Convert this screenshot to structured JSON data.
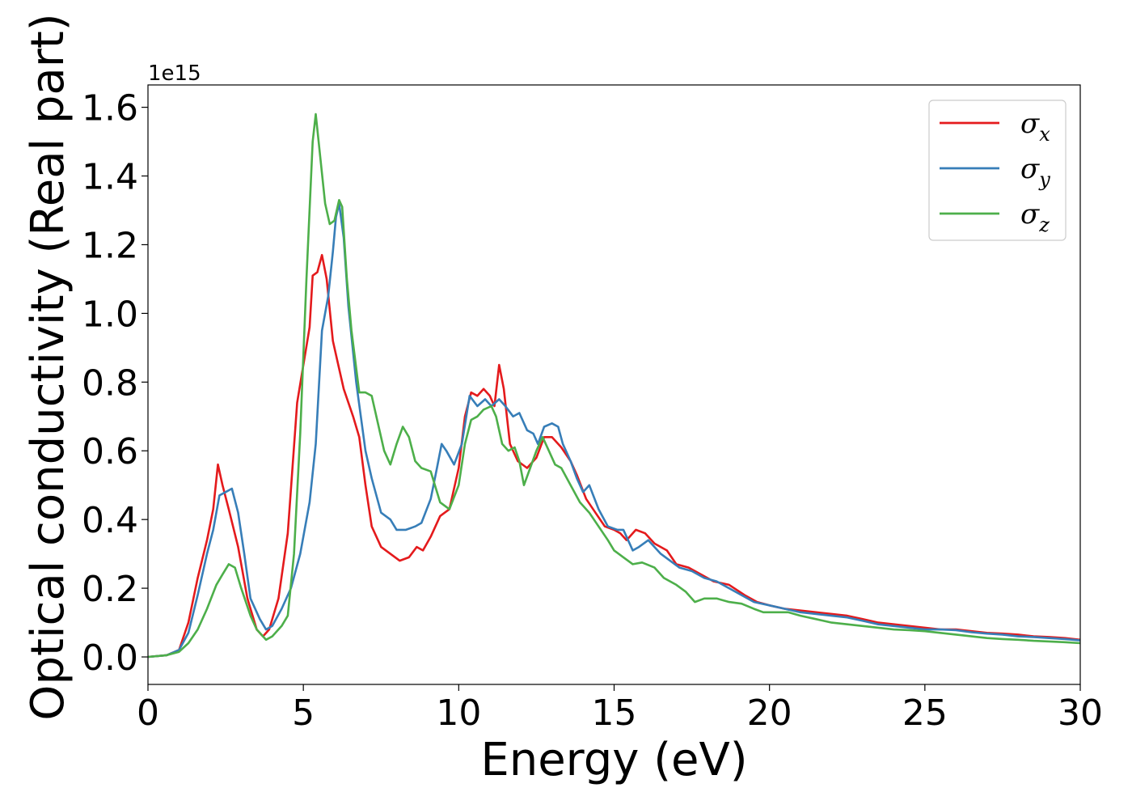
{
  "chart_data": {
    "type": "line",
    "xlabel": "Energy (eV)",
    "ylabel": "Optical conductivity (Real part)",
    "y_offset_text": "1e15",
    "xlim": [
      0,
      30
    ],
    "ylim": [
      -0.08,
      1.665
    ],
    "xticks": [
      0,
      5,
      10,
      15,
      20,
      25,
      30
    ],
    "yticks": [
      0.0,
      0.2,
      0.4,
      0.6,
      0.8,
      1.0,
      1.2,
      1.4,
      1.6
    ],
    "ytick_labels": [
      "0.0",
      "0.2",
      "0.4",
      "0.6",
      "0.8",
      "1.0",
      "1.2",
      "1.4",
      "1.6"
    ],
    "legend_position": "upper-right",
    "grid": false,
    "series": [
      {
        "name": "σx",
        "symbol": "σ",
        "subscript": "x",
        "color": "#e41a1c",
        "points": [
          [
            0,
            0
          ],
          [
            0.6,
            0.005
          ],
          [
            1.0,
            0.02
          ],
          [
            1.3,
            0.1
          ],
          [
            1.6,
            0.23
          ],
          [
            1.9,
            0.34
          ],
          [
            2.1,
            0.43
          ],
          [
            2.25,
            0.56
          ],
          [
            2.4,
            0.5
          ],
          [
            2.6,
            0.43
          ],
          [
            2.9,
            0.32
          ],
          [
            3.2,
            0.17
          ],
          [
            3.5,
            0.08
          ],
          [
            3.7,
            0.06
          ],
          [
            3.9,
            0.08
          ],
          [
            4.2,
            0.17
          ],
          [
            4.5,
            0.36
          ],
          [
            4.8,
            0.74
          ],
          [
            5.0,
            0.85
          ],
          [
            5.2,
            0.96
          ],
          [
            5.3,
            1.11
          ],
          [
            5.45,
            1.12
          ],
          [
            5.6,
            1.17
          ],
          [
            5.75,
            1.1
          ],
          [
            5.95,
            0.92
          ],
          [
            6.1,
            0.86
          ],
          [
            6.3,
            0.78
          ],
          [
            6.6,
            0.7
          ],
          [
            6.8,
            0.64
          ],
          [
            7.0,
            0.5
          ],
          [
            7.2,
            0.38
          ],
          [
            7.5,
            0.32
          ],
          [
            7.8,
            0.3
          ],
          [
            8.1,
            0.28
          ],
          [
            8.4,
            0.29
          ],
          [
            8.65,
            0.32
          ],
          [
            8.85,
            0.31
          ],
          [
            9.1,
            0.35
          ],
          [
            9.4,
            0.41
          ],
          [
            9.7,
            0.43
          ],
          [
            10.0,
            0.55
          ],
          [
            10.2,
            0.7
          ],
          [
            10.4,
            0.77
          ],
          [
            10.6,
            0.76
          ],
          [
            10.8,
            0.78
          ],
          [
            11.0,
            0.76
          ],
          [
            11.15,
            0.73
          ],
          [
            11.3,
            0.85
          ],
          [
            11.45,
            0.78
          ],
          [
            11.65,
            0.62
          ],
          [
            11.9,
            0.57
          ],
          [
            12.2,
            0.55
          ],
          [
            12.5,
            0.58
          ],
          [
            12.75,
            0.64
          ],
          [
            13.0,
            0.64
          ],
          [
            13.3,
            0.61
          ],
          [
            13.6,
            0.57
          ],
          [
            13.8,
            0.53
          ],
          [
            14.1,
            0.46
          ],
          [
            14.4,
            0.42
          ],
          [
            14.7,
            0.38
          ],
          [
            15.0,
            0.37
          ],
          [
            15.2,
            0.36
          ],
          [
            15.4,
            0.34
          ],
          [
            15.7,
            0.37
          ],
          [
            16.0,
            0.36
          ],
          [
            16.3,
            0.33
          ],
          [
            16.7,
            0.31
          ],
          [
            17.0,
            0.27
          ],
          [
            17.4,
            0.26
          ],
          [
            17.8,
            0.24
          ],
          [
            18.2,
            0.22
          ],
          [
            18.7,
            0.21
          ],
          [
            19.2,
            0.18
          ],
          [
            19.6,
            0.16
          ],
          [
            20.0,
            0.15
          ],
          [
            20.5,
            0.14
          ],
          [
            21.0,
            0.135
          ],
          [
            21.5,
            0.13
          ],
          [
            22.0,
            0.125
          ],
          [
            22.5,
            0.12
          ],
          [
            23.0,
            0.11
          ],
          [
            23.5,
            0.1
          ],
          [
            24.0,
            0.095
          ],
          [
            24.5,
            0.09
          ],
          [
            25.0,
            0.085
          ],
          [
            25.5,
            0.08
          ],
          [
            26.0,
            0.08
          ],
          [
            26.5,
            0.075
          ],
          [
            27.0,
            0.07
          ],
          [
            27.5,
            0.068
          ],
          [
            28.0,
            0.065
          ],
          [
            28.5,
            0.06
          ],
          [
            29.0,
            0.058
          ],
          [
            29.5,
            0.055
          ],
          [
            30.0,
            0.05
          ]
        ]
      },
      {
        "name": "σy",
        "symbol": "σ",
        "subscript": "y",
        "color": "#377eb8",
        "points": [
          [
            0,
            0
          ],
          [
            0.6,
            0.005
          ],
          [
            1.0,
            0.02
          ],
          [
            1.3,
            0.07
          ],
          [
            1.6,
            0.18
          ],
          [
            1.9,
            0.3
          ],
          [
            2.1,
            0.37
          ],
          [
            2.3,
            0.47
          ],
          [
            2.5,
            0.48
          ],
          [
            2.7,
            0.49
          ],
          [
            2.9,
            0.42
          ],
          [
            3.1,
            0.3
          ],
          [
            3.3,
            0.17
          ],
          [
            3.6,
            0.11
          ],
          [
            3.8,
            0.08
          ],
          [
            4.0,
            0.09
          ],
          [
            4.3,
            0.14
          ],
          [
            4.6,
            0.2
          ],
          [
            4.9,
            0.3
          ],
          [
            5.2,
            0.45
          ],
          [
            5.4,
            0.62
          ],
          [
            5.6,
            0.95
          ],
          [
            5.8,
            1.05
          ],
          [
            5.95,
            1.18
          ],
          [
            6.05,
            1.28
          ],
          [
            6.15,
            1.32
          ],
          [
            6.3,
            1.22
          ],
          [
            6.45,
            1.02
          ],
          [
            6.7,
            0.8
          ],
          [
            7.0,
            0.6
          ],
          [
            7.2,
            0.52
          ],
          [
            7.5,
            0.42
          ],
          [
            7.8,
            0.4
          ],
          [
            8.0,
            0.37
          ],
          [
            8.3,
            0.37
          ],
          [
            8.6,
            0.38
          ],
          [
            8.8,
            0.39
          ],
          [
            9.1,
            0.46
          ],
          [
            9.3,
            0.55
          ],
          [
            9.45,
            0.62
          ],
          [
            9.6,
            0.6
          ],
          [
            9.85,
            0.56
          ],
          [
            10.1,
            0.62
          ],
          [
            10.35,
            0.76
          ],
          [
            10.6,
            0.73
          ],
          [
            10.85,
            0.75
          ],
          [
            11.05,
            0.73
          ],
          [
            11.3,
            0.75
          ],
          [
            11.5,
            0.73
          ],
          [
            11.75,
            0.7
          ],
          [
            11.95,
            0.71
          ],
          [
            12.2,
            0.66
          ],
          [
            12.4,
            0.65
          ],
          [
            12.55,
            0.62
          ],
          [
            12.75,
            0.67
          ],
          [
            13.0,
            0.68
          ],
          [
            13.2,
            0.67
          ],
          [
            13.35,
            0.62
          ],
          [
            13.6,
            0.57
          ],
          [
            13.8,
            0.52
          ],
          [
            14.0,
            0.48
          ],
          [
            14.2,
            0.5
          ],
          [
            14.5,
            0.43
          ],
          [
            14.8,
            0.38
          ],
          [
            15.1,
            0.37
          ],
          [
            15.3,
            0.37
          ],
          [
            15.6,
            0.31
          ],
          [
            15.8,
            0.32
          ],
          [
            16.1,
            0.34
          ],
          [
            16.5,
            0.3
          ],
          [
            16.8,
            0.28
          ],
          [
            17.1,
            0.26
          ],
          [
            17.5,
            0.25
          ],
          [
            17.9,
            0.23
          ],
          [
            18.3,
            0.22
          ],
          [
            18.7,
            0.2
          ],
          [
            19.1,
            0.18
          ],
          [
            19.5,
            0.16
          ],
          [
            20.0,
            0.15
          ],
          [
            20.5,
            0.14
          ],
          [
            21.0,
            0.13
          ],
          [
            21.5,
            0.125
          ],
          [
            22.0,
            0.12
          ],
          [
            22.5,
            0.115
          ],
          [
            23.0,
            0.105
          ],
          [
            23.5,
            0.095
          ],
          [
            24.0,
            0.09
          ],
          [
            24.5,
            0.085
          ],
          [
            25.0,
            0.08
          ],
          [
            25.5,
            0.08
          ],
          [
            26.0,
            0.078
          ],
          [
            26.5,
            0.072
          ],
          [
            27.0,
            0.068
          ],
          [
            27.5,
            0.065
          ],
          [
            28.0,
            0.06
          ],
          [
            28.5,
            0.058
          ],
          [
            29.0,
            0.055
          ],
          [
            29.5,
            0.052
          ],
          [
            30.0,
            0.048
          ]
        ]
      },
      {
        "name": "σz",
        "symbol": "σ",
        "subscript": "z",
        "color": "#4daf4a",
        "points": [
          [
            0,
            0
          ],
          [
            0.6,
            0.005
          ],
          [
            1.0,
            0.015
          ],
          [
            1.3,
            0.04
          ],
          [
            1.6,
            0.08
          ],
          [
            1.9,
            0.14
          ],
          [
            2.2,
            0.21
          ],
          [
            2.4,
            0.24
          ],
          [
            2.6,
            0.27
          ],
          [
            2.8,
            0.26
          ],
          [
            3.0,
            0.2
          ],
          [
            3.3,
            0.12
          ],
          [
            3.5,
            0.08
          ],
          [
            3.8,
            0.05
          ],
          [
            4.0,
            0.06
          ],
          [
            4.3,
            0.09
          ],
          [
            4.5,
            0.12
          ],
          [
            4.7,
            0.3
          ],
          [
            4.9,
            0.65
          ],
          [
            5.1,
            1.1
          ],
          [
            5.3,
            1.5
          ],
          [
            5.4,
            1.58
          ],
          [
            5.55,
            1.45
          ],
          [
            5.7,
            1.32
          ],
          [
            5.85,
            1.26
          ],
          [
            6.0,
            1.27
          ],
          [
            6.15,
            1.33
          ],
          [
            6.25,
            1.31
          ],
          [
            6.4,
            1.1
          ],
          [
            6.55,
            0.95
          ],
          [
            6.8,
            0.77
          ],
          [
            7.0,
            0.77
          ],
          [
            7.2,
            0.76
          ],
          [
            7.4,
            0.68
          ],
          [
            7.6,
            0.6
          ],
          [
            7.8,
            0.56
          ],
          [
            8.0,
            0.62
          ],
          [
            8.2,
            0.67
          ],
          [
            8.4,
            0.64
          ],
          [
            8.6,
            0.57
          ],
          [
            8.8,
            0.55
          ],
          [
            9.1,
            0.54
          ],
          [
            9.4,
            0.45
          ],
          [
            9.7,
            0.43
          ],
          [
            10.0,
            0.5
          ],
          [
            10.2,
            0.62
          ],
          [
            10.4,
            0.69
          ],
          [
            10.6,
            0.7
          ],
          [
            10.8,
            0.72
          ],
          [
            11.05,
            0.73
          ],
          [
            11.2,
            0.7
          ],
          [
            11.4,
            0.62
          ],
          [
            11.6,
            0.6
          ],
          [
            11.8,
            0.61
          ],
          [
            11.95,
            0.57
          ],
          [
            12.1,
            0.5
          ],
          [
            12.3,
            0.55
          ],
          [
            12.5,
            0.6
          ],
          [
            12.7,
            0.64
          ],
          [
            12.9,
            0.6
          ],
          [
            13.1,
            0.56
          ],
          [
            13.3,
            0.55
          ],
          [
            13.6,
            0.5
          ],
          [
            13.9,
            0.45
          ],
          [
            14.2,
            0.42
          ],
          [
            14.5,
            0.38
          ],
          [
            14.8,
            0.34
          ],
          [
            15.0,
            0.31
          ],
          [
            15.3,
            0.29
          ],
          [
            15.6,
            0.27
          ],
          [
            15.9,
            0.275
          ],
          [
            16.3,
            0.26
          ],
          [
            16.6,
            0.23
          ],
          [
            17.0,
            0.21
          ],
          [
            17.3,
            0.19
          ],
          [
            17.6,
            0.16
          ],
          [
            17.9,
            0.17
          ],
          [
            18.3,
            0.17
          ],
          [
            18.7,
            0.16
          ],
          [
            19.1,
            0.155
          ],
          [
            19.5,
            0.14
          ],
          [
            19.8,
            0.13
          ],
          [
            20.2,
            0.13
          ],
          [
            20.6,
            0.13
          ],
          [
            21.0,
            0.12
          ],
          [
            21.5,
            0.11
          ],
          [
            22.0,
            0.1
          ],
          [
            22.5,
            0.095
          ],
          [
            23.0,
            0.09
          ],
          [
            23.5,
            0.085
          ],
          [
            24.0,
            0.08
          ],
          [
            24.5,
            0.078
          ],
          [
            25.0,
            0.075
          ],
          [
            25.5,
            0.07
          ],
          [
            26.0,
            0.065
          ],
          [
            26.5,
            0.06
          ],
          [
            27.0,
            0.055
          ],
          [
            27.5,
            0.052
          ],
          [
            28.0,
            0.05
          ],
          [
            28.5,
            0.047
          ],
          [
            29.0,
            0.045
          ],
          [
            29.5,
            0.043
          ],
          [
            30.0,
            0.04
          ]
        ]
      }
    ]
  }
}
